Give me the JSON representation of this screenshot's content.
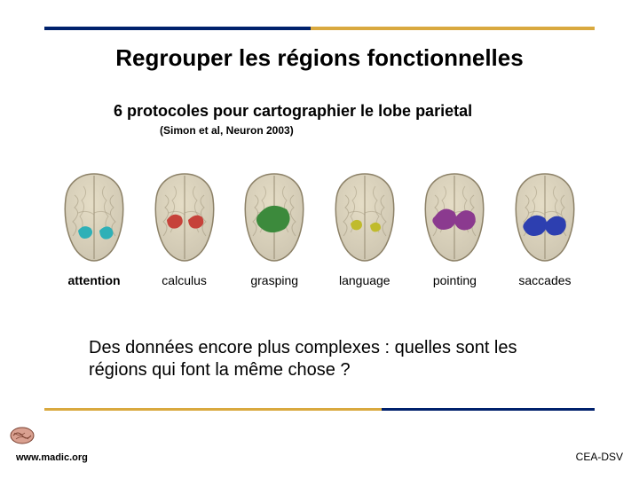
{
  "layout": {
    "top_rule_dark_color": "#00216c",
    "top_rule_gold_color": "#d9a93f",
    "bottom_rule_gold_color": "#d9a93f",
    "bottom_rule_dark_color": "#00216c",
    "background_color": "#ffffff"
  },
  "title": "Regrouper les régions fonctionnelles",
  "subtitle": "6 protocoles pour cartographier le lobe parietal",
  "citation": "(Simon et al, Neuron 2003)",
  "brains": {
    "base_fill": "#cfc7b2",
    "base_stroke": "#8c8167",
    "sulcus_stroke": "#a49a80",
    "items": [
      {
        "label": "attention",
        "highlight": "#2fb0b7"
      },
      {
        "label": "calculus",
        "highlight": "#c6423a"
      },
      {
        "label": "grasping",
        "highlight": "#3c8a3c"
      },
      {
        "label": "language",
        "highlight": "#c0bb2c"
      },
      {
        "label": "pointing",
        "highlight": "#8b3a8f"
      },
      {
        "label": "saccades",
        "highlight": "#2d3fb0"
      }
    ]
  },
  "question": "Des données encore plus complexes : quelles sont les régions qui font la même chose ?",
  "footer": {
    "left": "www.madic.org",
    "right": "CEA-DSV"
  },
  "typography": {
    "title_fontsize": 26,
    "subtitle_fontsize": 18,
    "citation_fontsize": 12,
    "label_fontsize": 14,
    "question_fontsize": 20,
    "footer_fontsize": 11
  }
}
